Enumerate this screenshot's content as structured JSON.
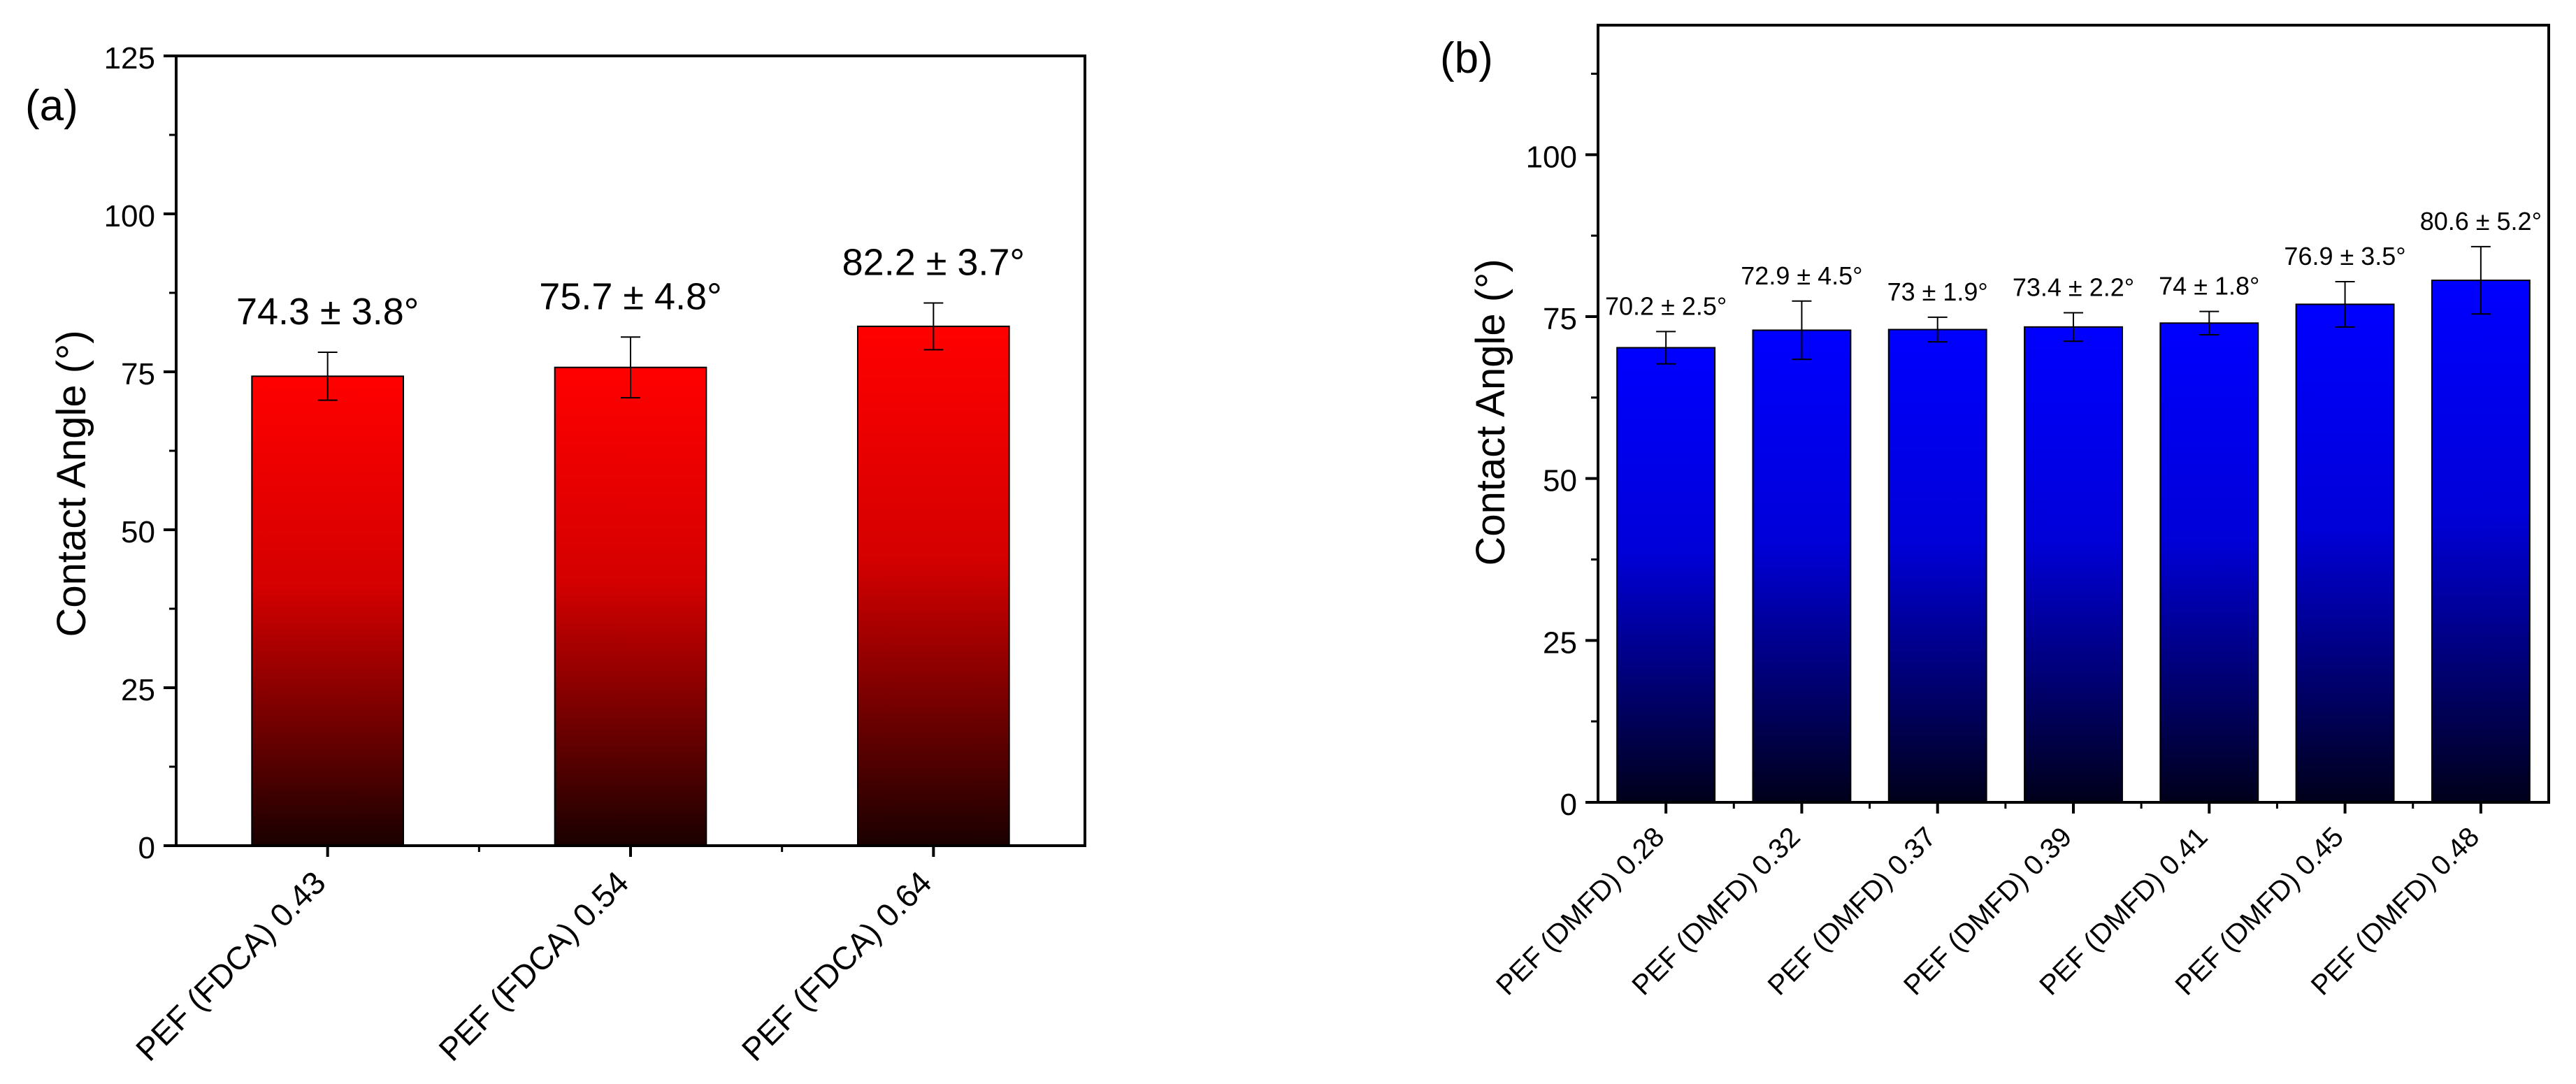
{
  "chart_data": [
    {
      "panel_label": "(a)",
      "type": "bar",
      "ylabel": "Contact Angle (°)",
      "ylim": [
        0,
        125
      ],
      "yticks": [
        0,
        25,
        50,
        75,
        100,
        125
      ],
      "categories": [
        "PEF (FDCA) 0.43",
        "PEF (FDCA) 0.54",
        "PEF (FDCA) 0.64"
      ],
      "values": [
        74.3,
        75.7,
        82.2
      ],
      "errors": [
        3.8,
        4.8,
        3.7
      ],
      "labels": [
        "74.3 ± 3.8°",
        "75.7 ± 4.8°",
        "82.2 ± 3.7°"
      ],
      "bar_color": "#ff0000"
    },
    {
      "panel_label": "(b)",
      "type": "bar",
      "ylabel": "Contact Angle (°)",
      "ylim": [
        0,
        120
      ],
      "yticks": [
        0,
        25,
        50,
        75,
        100
      ],
      "categories": [
        "PEF (DMFD) 0.28",
        "PEF (DMFD) 0.32",
        "PEF (DMFD) 0.37",
        "PEF (DMFD) 0.39",
        "PEF (DMFD) 0.41",
        "PEF (DMFD) 0.45",
        "PEF (DMFD) 0.48"
      ],
      "values": [
        70.2,
        72.9,
        73,
        73.4,
        74,
        76.9,
        80.6
      ],
      "errors": [
        2.5,
        4.5,
        1.9,
        2.2,
        1.8,
        3.5,
        5.2
      ],
      "labels": [
        "70.2 ± 2.5°",
        "72.9 ± 4.5°",
        "73 ± 1.9°",
        "73.4 ± 2.2°",
        "74 ± 1.8°",
        "76.9 ± 3.5°",
        "80.6 ± 5.2°"
      ],
      "bar_color": "#0000ff"
    }
  ]
}
